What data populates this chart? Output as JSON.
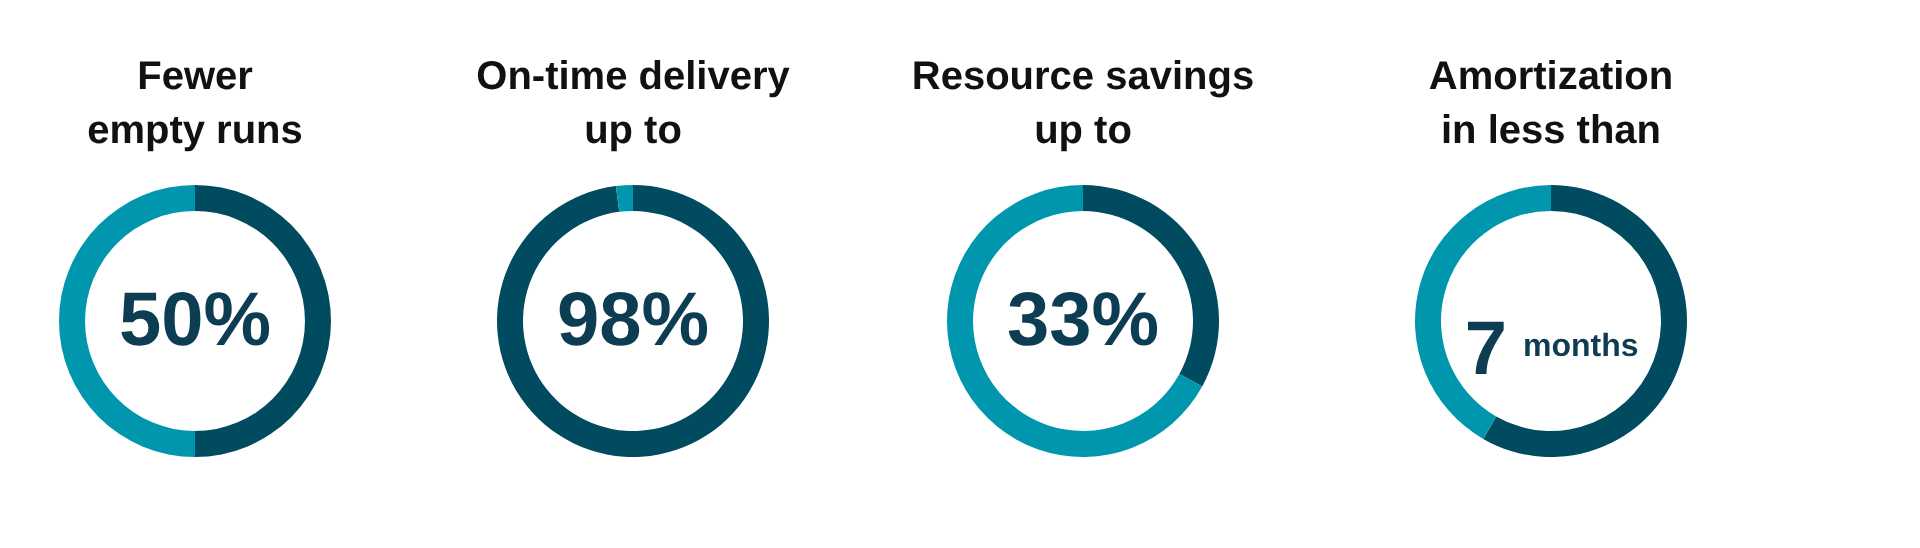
{
  "chart_data": [
    {
      "type": "donut",
      "title": "Fewer\nempty runs",
      "categories": [
        null,
        null
      ],
      "values": [
        50,
        50
      ],
      "colors": [
        "#004b5f",
        "#0096ad"
      ],
      "annotations": [
        "50%"
      ]
    },
    {
      "type": "donut",
      "title": "On-time delivery\nup to",
      "categories": [
        null,
        null
      ],
      "values": [
        98,
        2
      ],
      "colors": [
        "#004b5f",
        "#0096ad"
      ],
      "annotations": [
        "98%"
      ]
    },
    {
      "type": "donut",
      "title": "Resource savings\nup to",
      "categories": [
        null,
        null
      ],
      "values": [
        33,
        67
      ],
      "colors": [
        "#004b5f",
        "#0096ad"
      ],
      "annotations": [
        "33%"
      ]
    },
    {
      "type": "donut",
      "title": "Amortization\nin less than",
      "categories": [
        null,
        null
      ],
      "values": [
        58.3,
        41.7
      ],
      "colors": [
        "#004b5f",
        "#0096ad"
      ],
      "annotations": [
        "7",
        "months"
      ]
    }
  ]
}
